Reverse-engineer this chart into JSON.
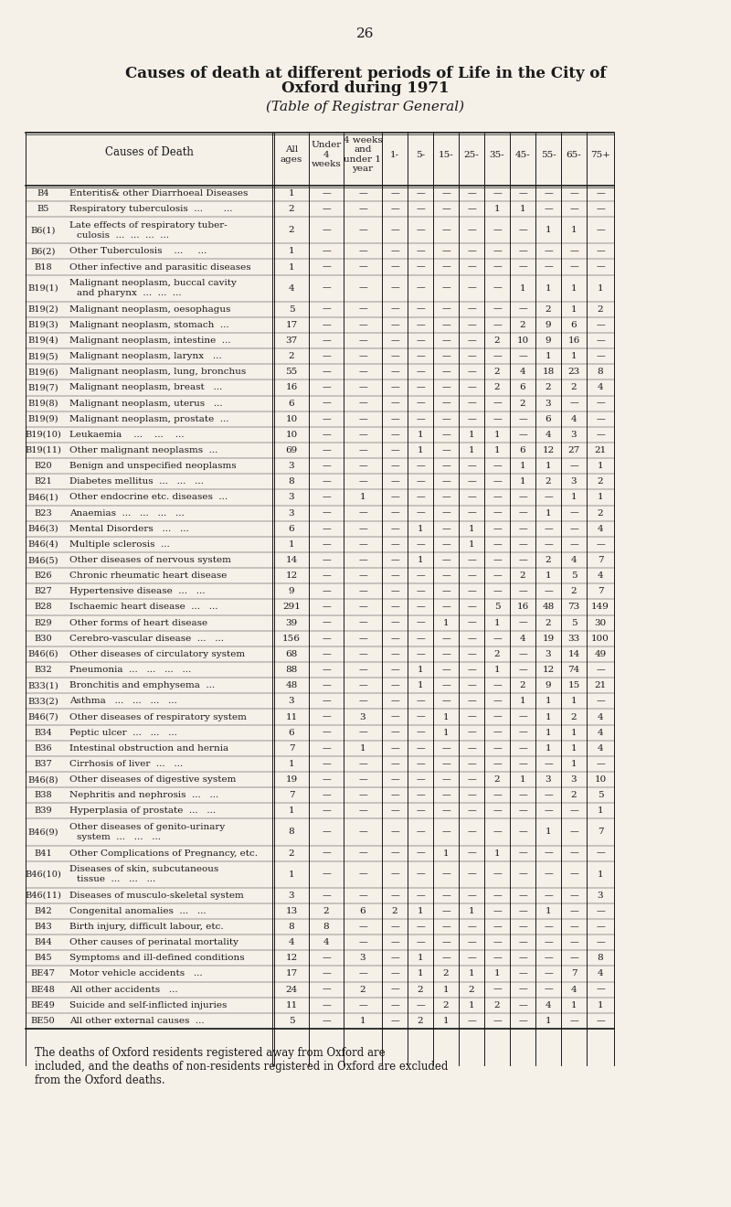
{
  "page_number": "26",
  "title1": "Causes of death at different periods of Life in the City of",
  "title2": "Oxford during 1971",
  "subtitle": "(Table of Registrar General)",
  "background_color": "#f5f0e8",
  "text_color": "#1a1a1a",
  "col_headers": [
    "All\nages",
    "Under\n4\nweeks",
    "4 weeks\nand\nunder 1\nyear",
    "1-",
    "5-",
    "15-",
    "25-",
    "35-",
    "45-",
    "55-",
    "65-",
    "75+"
  ],
  "rows": [
    {
      "code": "B4",
      "desc": "Enteritis& other Diarrhoeal Diseases",
      "vals": [
        "1",
        "",
        "",
        "",
        "",
        "",
        "",
        "",
        "",
        "",
        "",
        ""
      ]
    },
    {
      "code": "B5",
      "desc": "Respiratory tuberculosis  ...       ...",
      "vals": [
        "2",
        "",
        "",
        "",
        "",
        "",
        "",
        "1",
        "1",
        "",
        "",
        ""
      ]
    },
    {
      "code": "B6(1)",
      "desc": "Late effects of respiratory tuber-\n   culosis  ...  ...  ...  ...",
      "vals": [
        "2",
        "",
        "",
        "",
        "",
        "",
        "",
        "",
        "",
        "1",
        "1",
        ""
      ]
    },
    {
      "code": "B6(2)",
      "desc": "Other Tuberculosis    ...     ...",
      "vals": [
        "1",
        "",
        "",
        "",
        "",
        "",
        "",
        "",
        "",
        "",
        "",
        ""
      ]
    },
    {
      "code": "B18",
      "desc": "Other infective and parasitic diseases",
      "vals": [
        "1",
        "",
        "",
        "",
        "",
        "",
        "",
        "",
        "",
        "",
        "",
        ""
      ]
    },
    {
      "code": "B19(1)",
      "desc": "Malignant neoplasm, buccal cavity\n   and pharynx  ...  ...  ...",
      "vals": [
        "4",
        "",
        "",
        "",
        "",
        "",
        "",
        "",
        "1",
        "1",
        "1",
        "1"
      ]
    },
    {
      "code": "B19(2)",
      "desc": "Malignant neoplasm, oesophagus",
      "vals": [
        "5",
        "",
        "",
        "",
        "",
        "",
        "",
        "",
        "",
        "2",
        "1",
        "2"
      ]
    },
    {
      "code": "B19(3)",
      "desc": "Malignant neoplasm, stomach  ...",
      "vals": [
        "17",
        "",
        "",
        "",
        "",
        "",
        "",
        "",
        "2",
        "9",
        "6",
        ""
      ]
    },
    {
      "code": "B19(4)",
      "desc": "Malignant neoplasm, intestine  ...",
      "vals": [
        "37",
        "",
        "",
        "",
        "",
        "",
        "",
        "2",
        "10",
        "9",
        "16",
        ""
      ]
    },
    {
      "code": "B19(5)",
      "desc": "Malignant neoplasm, larynx   ...",
      "vals": [
        "2",
        "",
        "",
        "",
        "",
        "",
        "",
        "",
        "",
        "1",
        "1",
        ""
      ]
    },
    {
      "code": "B19(6)",
      "desc": "Malignant neoplasm, lung, bronchus",
      "vals": [
        "55",
        "",
        "",
        "",
        "",
        "",
        "",
        "2",
        "4",
        "18",
        "23",
        "8"
      ]
    },
    {
      "code": "B19(7)",
      "desc": "Malignant neoplasm, breast   ...",
      "vals": [
        "16",
        "",
        "",
        "",
        "",
        "",
        "",
        "2",
        "6",
        "2",
        "2",
        "4"
      ]
    },
    {
      "code": "B19(8)",
      "desc": "Malignant neoplasm, uterus   ...",
      "vals": [
        "6",
        "",
        "",
        "",
        "",
        "",
        "",
        "",
        "2",
        "3",
        "",
        ""
      ]
    },
    {
      "code": "B19(9)",
      "desc": "Malignant neoplasm, prostate  ...",
      "vals": [
        "10",
        "",
        "",
        "",
        "",
        "",
        "",
        "",
        "",
        "6",
        "4",
        ""
      ]
    },
    {
      "code": "B19(10)",
      "desc": "Leukaemia    ...    ...    ...",
      "vals": [
        "10",
        "",
        "",
        "",
        "1",
        "",
        "1",
        "1",
        "",
        "4",
        "3",
        ""
      ]
    },
    {
      "code": "B19(11)",
      "desc": "Other malignant neoplasms  ...",
      "vals": [
        "69",
        "",
        "",
        "",
        "1",
        "",
        "1",
        "1",
        "6",
        "12",
        "27",
        "21"
      ]
    },
    {
      "code": "B20",
      "desc": "Benign and unspecified neoplasms",
      "vals": [
        "3",
        "",
        "",
        "",
        "",
        "",
        "",
        "",
        "1",
        "1",
        "",
        "1"
      ]
    },
    {
      "code": "B21",
      "desc": "Diabetes mellitus  ...   ...   ...",
      "vals": [
        "8",
        "",
        "",
        "",
        "",
        "",
        "",
        "",
        "1",
        "2",
        "3",
        "2"
      ]
    },
    {
      "code": "B46(1)",
      "desc": "Other endocrine etc. diseases  ...",
      "vals": [
        "3",
        "",
        "1",
        "",
        "",
        "",
        "",
        "",
        "",
        "",
        "1",
        "1"
      ]
    },
    {
      "code": "B23",
      "desc": "Anaemias  ...   ...   ...   ...",
      "vals": [
        "3",
        "",
        "",
        "",
        "",
        "",
        "",
        "",
        "",
        "1",
        "",
        "2"
      ]
    },
    {
      "code": "B46(3)",
      "desc": "Mental Disorders   ...   ...",
      "vals": [
        "6",
        "",
        "",
        "",
        "1",
        "",
        "1",
        "",
        "",
        "",
        "",
        "4"
      ]
    },
    {
      "code": "B46(4)",
      "desc": "Multiple sclerosis  ...",
      "vals": [
        "1",
        "",
        "",
        "",
        "",
        "",
        "1",
        "",
        "",
        "",
        "",
        ""
      ]
    },
    {
      "code": "B46(5)",
      "desc": "Other diseases of nervous system",
      "vals": [
        "14",
        "",
        "",
        "",
        "1",
        "",
        "",
        "",
        "",
        "2",
        "4",
        "7"
      ]
    },
    {
      "code": "B26",
      "desc": "Chronic rheumatic heart disease",
      "vals": [
        "12",
        "",
        "",
        "",
        "",
        "",
        "",
        "",
        "2",
        "1",
        "5",
        "4"
      ]
    },
    {
      "code": "B27",
      "desc": "Hypertensive disease  ...   ...",
      "vals": [
        "9",
        "",
        "",
        "",
        "",
        "",
        "",
        "",
        "",
        "",
        "2",
        "7"
      ]
    },
    {
      "code": "B28",
      "desc": "Ischaemic heart disease  ...   ...",
      "vals": [
        "291",
        "",
        "",
        "",
        "",
        "",
        "",
        "5",
        "16",
        "48",
        "73",
        "149"
      ]
    },
    {
      "code": "B29",
      "desc": "Other forms of heart disease",
      "vals": [
        "39",
        "",
        "",
        "",
        "",
        "1",
        "",
        "1",
        "",
        "2",
        "5",
        "30"
      ]
    },
    {
      "code": "B30",
      "desc": "Cerebro-vascular disease  ...   ...",
      "vals": [
        "156",
        "",
        "",
        "",
        "",
        "",
        "",
        "",
        "4",
        "19",
        "33",
        "100"
      ]
    },
    {
      "code": "B46(6)",
      "desc": "Other diseases of circulatory system",
      "vals": [
        "68",
        "",
        "",
        "",
        "",
        "",
        "",
        "2",
        "",
        "3",
        "14",
        "49"
      ]
    },
    {
      "code": "B32",
      "desc": "Pneumonia  ...   ...   ...   ...",
      "vals": [
        "88",
        "",
        "",
        "",
        "1",
        "",
        "",
        "1",
        "",
        "12",
        "74",
        ""
      ]
    },
    {
      "code": "B33(1)",
      "desc": "Bronchitis and emphysema  ...",
      "vals": [
        "48",
        "",
        "",
        "",
        "1",
        "",
        "",
        "",
        "2",
        "9",
        "15",
        "21"
      ]
    },
    {
      "code": "B33(2)",
      "desc": "Asthma   ...   ...   ...   ...",
      "vals": [
        "3",
        "",
        "",
        "",
        "",
        "",
        "",
        "",
        "1",
        "1",
        "1",
        ""
      ]
    },
    {
      "code": "B46(7)",
      "desc": "Other diseases of respiratory system",
      "vals": [
        "11",
        "",
        "3",
        "",
        "",
        "1",
        "",
        "",
        "",
        "1",
        "2",
        "4"
      ]
    },
    {
      "code": "B34",
      "desc": "Peptic ulcer  ...   ...   ...",
      "vals": [
        "6",
        "",
        "",
        "",
        "",
        "1",
        "",
        "",
        "",
        "1",
        "1",
        "4"
      ]
    },
    {
      "code": "B36",
      "desc": "Intestinal obstruction and hernia",
      "vals": [
        "7",
        "",
        "1",
        "",
        "",
        "",
        "",
        "",
        "",
        "1",
        "1",
        "4"
      ]
    },
    {
      "code": "B37",
      "desc": "Cirrhosis of liver  ...   ...",
      "vals": [
        "1",
        "",
        "",
        "",
        "",
        "",
        "",
        "",
        "",
        "",
        "1",
        ""
      ]
    },
    {
      "code": "B46(8)",
      "desc": "Other diseases of digestive system",
      "vals": [
        "19",
        "",
        "",
        "",
        "",
        "",
        "",
        "2",
        "1",
        "3",
        "3",
        "10"
      ]
    },
    {
      "code": "B38",
      "desc": "Nephritis and nephrosis  ...   ...",
      "vals": [
        "7",
        "",
        "",
        "",
        "",
        "",
        "",
        "",
        "",
        "",
        "2",
        "5"
      ]
    },
    {
      "code": "B39",
      "desc": "Hyperplasia of prostate  ...   ...",
      "vals": [
        "1",
        "",
        "",
        "",
        "",
        "",
        "",
        "",
        "",
        "",
        "",
        "1"
      ]
    },
    {
      "code": "B46(9)",
      "desc": "Other diseases of genito-urinary\n   system  ...   ...   ...",
      "vals": [
        "8",
        "",
        "",
        "",
        "",
        "",
        "",
        "",
        "",
        "1",
        "",
        "7"
      ]
    },
    {
      "code": "B41",
      "desc": "Other Complications of Pregnancy, etc.",
      "vals": [
        "2",
        "",
        "",
        "",
        "",
        "1",
        "",
        "1",
        "",
        "",
        "",
        ""
      ]
    },
    {
      "code": "B46(10)",
      "desc": "Diseases of skin, subcutaneous\n   tissue  ...   ...   ...",
      "vals": [
        "1",
        "",
        "",
        "",
        "",
        "",
        "",
        "",
        "",
        "",
        "",
        "1"
      ]
    },
    {
      "code": "B46(11)",
      "desc": "Diseases of musculo-skeletal system",
      "vals": [
        "3",
        "",
        "",
        "",
        "",
        "",
        "",
        "",
        "",
        "",
        "",
        "3"
      ]
    },
    {
      "code": "B42",
      "desc": "Congenital anomalies  ...   ...",
      "vals": [
        "13",
        "2",
        "6",
        "2",
        "1",
        "",
        "1",
        "",
        "",
        "1",
        "",
        ""
      ]
    },
    {
      "code": "B43",
      "desc": "Birth injury, difficult labour, etc.",
      "vals": [
        "8",
        "8",
        "",
        "",
        "",
        "",
        "",
        "",
        "",
        "",
        "",
        ""
      ]
    },
    {
      "code": "B44",
      "desc": "Other causes of perinatal mortality",
      "vals": [
        "4",
        "4",
        "",
        "",
        "",
        "",
        "",
        "",
        "",
        "",
        "",
        ""
      ]
    },
    {
      "code": "B45",
      "desc": "Symptoms and ill-defined conditions",
      "vals": [
        "12",
        "",
        "3",
        "",
        "1",
        "",
        "",
        "",
        "",
        "",
        "",
        "8"
      ]
    },
    {
      "code": "BE47",
      "desc": "Motor vehicle accidents   ...",
      "vals": [
        "17",
        "",
        "",
        "",
        "1",
        "2",
        "1",
        "1",
        "",
        "",
        "7",
        "4"
      ]
    },
    {
      "code": "BE48",
      "desc": "All other accidents   ...",
      "vals": [
        "24",
        "",
        "2",
        "",
        "2",
        "1",
        "2",
        "",
        "",
        "",
        "4",
        ""
      ]
    },
    {
      "code": "BE49",
      "desc": "Suicide and self-inflicted injuries",
      "vals": [
        "11",
        "",
        "",
        "",
        "",
        "2",
        "1",
        "2",
        "",
        "4",
        "1",
        "1"
      ]
    },
    {
      "code": "BE50",
      "desc": "All other external causes  ...",
      "vals": [
        "5",
        "",
        "1",
        "",
        "2",
        "1",
        "",
        "",
        "",
        "1",
        "",
        ""
      ]
    }
  ],
  "footnote": "The deaths of Oxford residents registered away from Oxford are\nincluded, and the deaths of non-residents registered in Oxford are excluded\nfrom the Oxford deaths."
}
